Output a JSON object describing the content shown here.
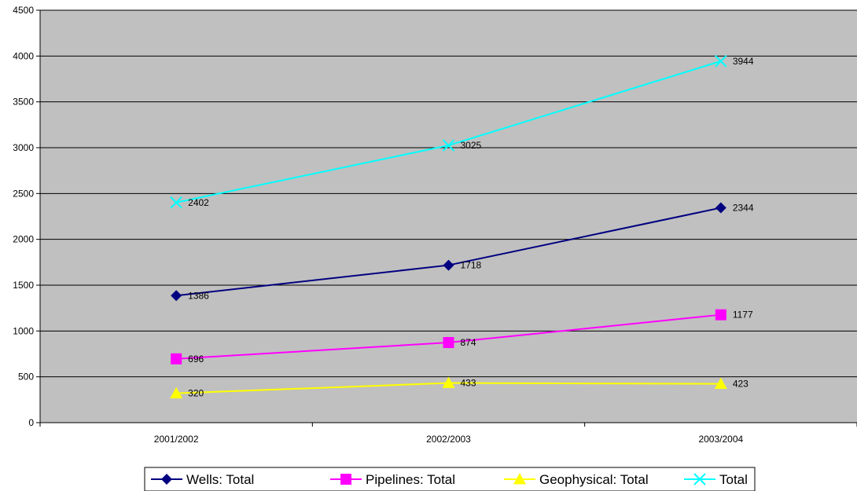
{
  "chart_data": {
    "type": "line",
    "categories": [
      "2001/2002",
      "2002/2003",
      "2003/2004"
    ],
    "ylim": [
      0,
      4500
    ],
    "yticks": [
      0,
      500,
      1000,
      1500,
      2000,
      2500,
      3000,
      3500,
      4000,
      4500
    ],
    "grid": true,
    "plot_background": "#c0c0c0",
    "legend_position": "bottom",
    "series": [
      {
        "name": "Wells: Total",
        "values": [
          1386,
          1718,
          2344
        ],
        "color": "#000080",
        "marker": "diamond"
      },
      {
        "name": "Pipelines: Total",
        "values": [
          696,
          874,
          1177
        ],
        "color": "#ff00ff",
        "marker": "square"
      },
      {
        "name": "Geophysical: Total",
        "values": [
          320,
          433,
          423
        ],
        "color": "#ffff00",
        "marker": "triangle"
      },
      {
        "name": "Total",
        "values": [
          2402,
          3025,
          3944
        ],
        "color": "#00ffff",
        "marker": "x"
      }
    ]
  }
}
